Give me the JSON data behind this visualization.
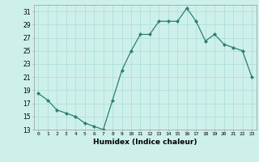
{
  "x": [
    0,
    1,
    2,
    3,
    4,
    5,
    6,
    7,
    8,
    9,
    10,
    11,
    12,
    13,
    14,
    15,
    16,
    17,
    18,
    19,
    20,
    21,
    22,
    23
  ],
  "y": [
    18.5,
    17.5,
    16.0,
    15.5,
    15.0,
    14.0,
    13.5,
    13.0,
    17.5,
    22.0,
    25.0,
    27.5,
    27.5,
    29.5,
    29.5,
    29.5,
    31.5,
    29.5,
    26.5,
    27.5,
    26.0,
    25.5,
    25.0,
    21.0
  ],
  "line_color": "#2d7e72",
  "marker": "D",
  "marker_size": 2.0,
  "bg_color": "#cef0eb",
  "grid_color": "#aaddd7",
  "xlabel": "Humidex (Indice chaleur)",
  "xlim": [
    -0.5,
    23.5
  ],
  "ylim": [
    13,
    32
  ],
  "yticks": [
    13,
    15,
    17,
    19,
    21,
    23,
    25,
    27,
    29,
    31
  ],
  "xticks": [
    0,
    1,
    2,
    3,
    4,
    5,
    6,
    7,
    8,
    9,
    10,
    11,
    12,
    13,
    14,
    15,
    16,
    17,
    18,
    19,
    20,
    21,
    22,
    23
  ],
  "xtick_labels": [
    "0",
    "1",
    "2",
    "3",
    "4",
    "5",
    "6",
    "7",
    "8",
    "9",
    "10",
    "11",
    "12",
    "13",
    "14",
    "15",
    "16",
    "17",
    "18",
    "19",
    "20",
    "21",
    "22",
    "23"
  ]
}
